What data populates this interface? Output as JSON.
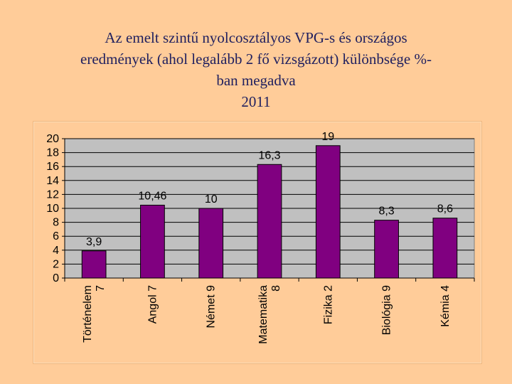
{
  "title_lines": [
    "Az emelt szintű nyolcosztályos VPG-s  és országos",
    "eredmények (ahol legalább 2 fő vizsgázott) különbsége %-",
    "ban megadva",
    "2011"
  ],
  "chart_data": {
    "type": "bar",
    "title": "",
    "xlabel": "",
    "ylabel": "",
    "ylim": [
      0,
      20
    ],
    "y_ticks": [
      0,
      2,
      4,
      6,
      8,
      10,
      12,
      14,
      16,
      18,
      20
    ],
    "grid": true,
    "categories": [
      [
        "Történelem",
        "7"
      ],
      [
        "Angol 7"
      ],
      [
        "Német  9"
      ],
      [
        "Matematika",
        "8"
      ],
      [
        "Fizika 2"
      ],
      [
        "Biológia 9"
      ],
      [
        "Kémia 4"
      ]
    ],
    "values": [
      3.9,
      10.46,
      10,
      16.3,
      19,
      8.3,
      8.6
    ],
    "data_labels": [
      "3,9",
      "10,46",
      "10",
      "16,3",
      "19",
      "8,3",
      "8,6"
    ],
    "bar_color": "#800080",
    "plot_background": "#C0C0C0"
  }
}
